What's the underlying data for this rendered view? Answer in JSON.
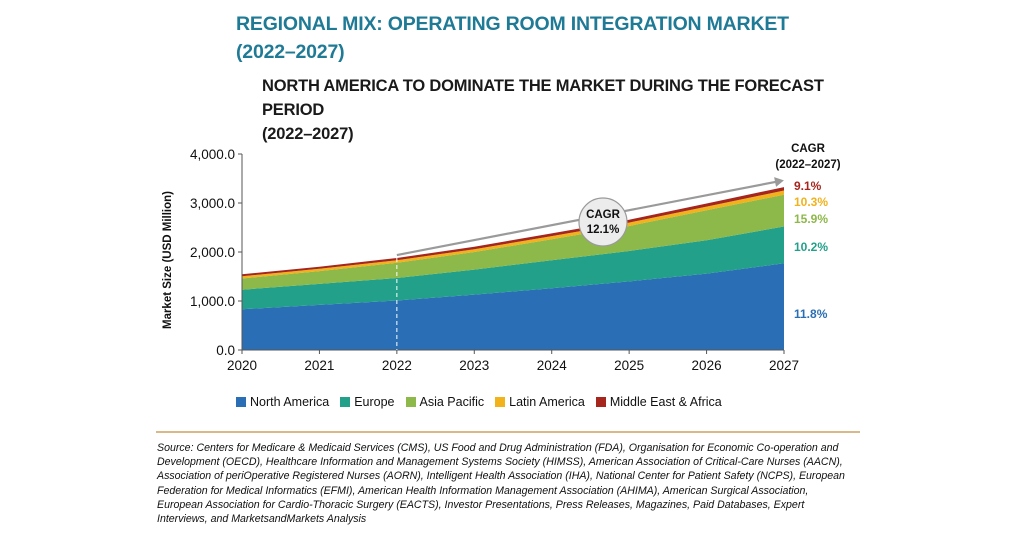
{
  "header": {
    "title_line1": "REGIONAL MIX: OPERATING ROOM INTEGRATION MARKET",
    "title_line2": "(2022–2027)",
    "subtitle_line1": "NORTH AMERICA TO DOMINATE THE MARKET DURING THE FORECAST PERIOD",
    "subtitle_line2": "(2022–2027)"
  },
  "chart_data": {
    "type": "area",
    "stacked": true,
    "x": [
      2020,
      2021,
      2022,
      2023,
      2024,
      2025,
      2026,
      2027
    ],
    "ylabel": "Market Size (USD Million)",
    "ylim": [
      0,
      4000
    ],
    "yticks": [
      "0.0",
      "1,000.0",
      "2,000.0",
      "3,000.0",
      "4,000.0"
    ],
    "ytick_values": [
      0,
      1000,
      2000,
      3000,
      4000
    ],
    "xticks": [
      "2020",
      "2021",
      "2022",
      "2023",
      "2024",
      "2025",
      "2026",
      "2027"
    ],
    "grid": false,
    "legend_position": "bottom",
    "series": [
      {
        "name": "North America",
        "color": "#2a6fb5",
        "values": [
          830,
          920,
          1010,
          1130,
          1260,
          1400,
          1560,
          1770
        ],
        "cagr": "11.8%"
      },
      {
        "name": "Europe",
        "color": "#22a08a",
        "values": [
          400,
          430,
          460,
          510,
          570,
          620,
          680,
          750
        ],
        "cagr": "10.2%"
      },
      {
        "name": "Asia Pacific",
        "color": "#8db84a",
        "values": [
          230,
          260,
          310,
          360,
          430,
          510,
          610,
          650
        ],
        "cagr": "15.9%"
      },
      {
        "name": "Latin America",
        "color": "#f1b21c",
        "values": [
          45,
          48,
          52,
          58,
          64,
          70,
          76,
          85
        ],
        "cagr": "10.3%"
      },
      {
        "name": "Middle East & Africa",
        "color": "#a6251d",
        "values": [
          40,
          42,
          45,
          50,
          55,
          60,
          64,
          70
        ],
        "cagr": "9.1%"
      }
    ],
    "cagr_header_line1": "CAGR",
    "cagr_header_line2": "(2022–2027)",
    "cagr_overall_label": "CAGR",
    "cagr_overall_value": "12.1%",
    "marker_year": 2022
  },
  "source": {
    "text": "Source: Centers for Medicare & Medicaid Services (CMS), US Food and Drug Administration (FDA), Organisation for Economic Co-operation and Development (OECD), Healthcare Information and Management Systems Society (HIMSS), American Association of Critical-Care Nurses (AACN), Association of periOperative Registered Nurses (AORN), Intelligent Health Association (IHA), National Center for Patient Safety (NCPS), European Federation for Medical Informatics (EFMI), American Health Information Management Association (AHIMA), American Surgical Association, European Association for Cardio-Thoracic Surgery (EACTS), Investor Presentations, Press Releases, Magazines, Paid Databases, Expert Interviews, and MarketsandMarkets Analysis"
  }
}
